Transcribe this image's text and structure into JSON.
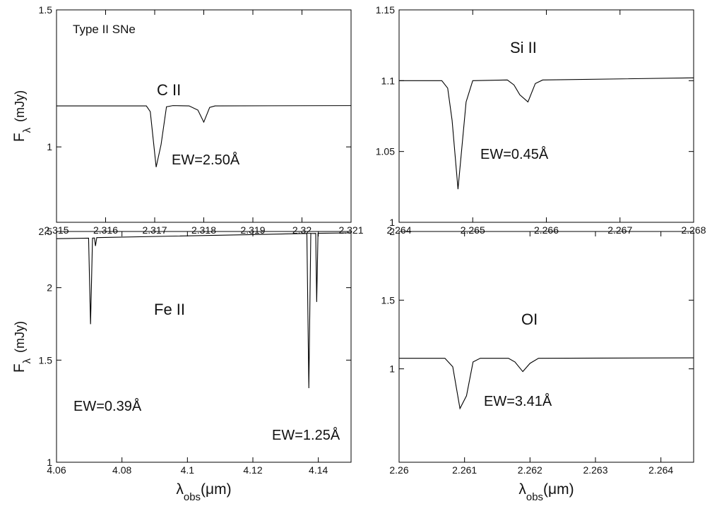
{
  "chart_data": [
    {
      "type": "line",
      "color": "#000000",
      "log_y": true,
      "annotations": [
        "Type II SNe",
        "C II",
        "EW=2.50Å"
      ],
      "y_label": [
        "F",
        "λ",
        "(mJy)"
      ],
      "xlim": [
        2.315,
        2.321
      ],
      "xticks": [
        2.315,
        2.316,
        2.317,
        2.318,
        2.319,
        2.32,
        2.321
      ],
      "ylim": [
        0.8,
        1.5
      ],
      "yticks": [
        1,
        1.5
      ],
      "x": [
        2.315,
        2.31683,
        2.31691,
        2.31703,
        2.31713,
        2.31724,
        2.31737,
        2.3177,
        2.31788,
        2.318,
        2.31812,
        2.31823,
        2.321
      ],
      "values": [
        1.129,
        1.129,
        1.11,
        0.942,
        1.007,
        1.126,
        1.13,
        1.129,
        1.115,
        1.076,
        1.124,
        1.129,
        1.13
      ]
    },
    {
      "type": "line",
      "color": "#000000",
      "log_y": false,
      "annotations": [
        "Si II",
        "EW=0.45Å"
      ],
      "xlim": [
        2.264,
        2.268
      ],
      "xticks": [
        2.264,
        2.265,
        2.266,
        2.267,
        2.268
      ],
      "ylim": [
        1,
        1.15
      ],
      "yticks": [
        1,
        1.05,
        1.1,
        1.15
      ],
      "x": [
        2.264,
        2.26458,
        2.26466,
        2.26472,
        2.2648,
        2.26486,
        2.26491,
        2.265,
        2.26547,
        2.26556,
        2.26564,
        2.26575,
        2.26585,
        2.26595,
        2.268
      ],
      "values": [
        1.1,
        1.1,
        1.0947,
        1.072,
        1.0234,
        1.057,
        1.085,
        1.1,
        1.1005,
        1.097,
        1.09,
        1.085,
        1.098,
        1.1005,
        1.102
      ]
    },
    {
      "type": "line",
      "color": "#000000",
      "log_y": true,
      "annotations": [
        "Fe II",
        "EW=0.39Å",
        "EW=1.25Å"
      ],
      "y_label": [
        "F",
        "λ",
        "(mJy)"
      ],
      "x_label": [
        "λ",
        "obs",
        "(μm)"
      ],
      "xlim": [
        4.06,
        4.15
      ],
      "xticks": [
        4.06,
        4.08,
        4.1,
        4.12,
        4.14
      ],
      "ylim": [
        1,
        2.5
      ],
      "yticks": [
        1,
        1.5,
        2,
        2.5
      ],
      "x": [
        4.06,
        4.0698,
        4.0704,
        4.071,
        4.0716,
        4.0719,
        4.0723,
        4.1365,
        4.1371,
        4.1377,
        4.1392,
        4.1395,
        4.1399,
        4.15
      ],
      "values": [
        2.43,
        2.435,
        1.73,
        2.435,
        2.436,
        2.36,
        2.44,
        2.48,
        1.342,
        2.48,
        2.481,
        1.89,
        2.482,
        2.486
      ]
    },
    {
      "type": "line",
      "color": "#000000",
      "log_y": false,
      "annotations": [
        "OI",
        "EW=3.41Å"
      ],
      "x_label": [
        "λ",
        "obs",
        "(μm)"
      ],
      "xlim": [
        2.26,
        2.2645
      ],
      "xticks": [
        2.26,
        2.261,
        2.262,
        2.263,
        2.264
      ],
      "ylim": [
        0.32,
        2
      ],
      "yticks": [
        1,
        1.5,
        2
      ],
      "x": [
        2.26,
        2.2607,
        2.26082,
        2.26093,
        2.26103,
        2.26113,
        2.26124,
        2.26167,
        2.26177,
        2.26189,
        2.262,
        2.26213,
        2.2645
      ],
      "values": [
        1.077,
        1.077,
        1.015,
        0.711,
        0.804,
        1.05,
        1.077,
        1.077,
        1.05,
        0.98,
        1.04,
        1.077,
        1.08
      ]
    }
  ]
}
